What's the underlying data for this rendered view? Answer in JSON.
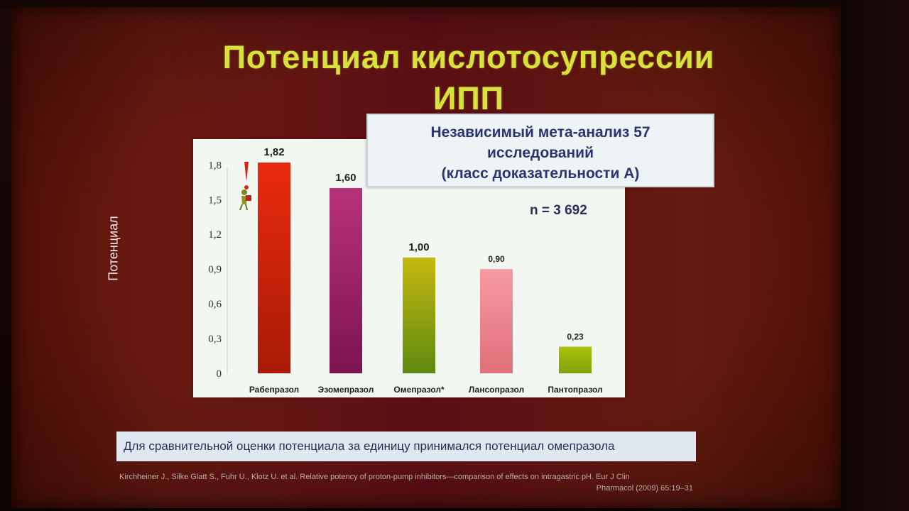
{
  "slide": {
    "title_line1": "Потенциал кислотосупрессии",
    "title_line2": "ИПП",
    "y_axis_title": "Потенциал",
    "info_box": {
      "line1": "Независимый мета-анализ 57",
      "line2": "исследований",
      "line3": "(класс доказательности А)"
    },
    "n_label": "n = 3 692",
    "note": "Для сравнительной оценки потенциала за единицу принимался потенциал омепразола",
    "reference_line1": "Kirchheiner J., Silke Glatt S., Fuhr U., Klotz U. et al. Relative potency of proton-pump inhibitors—comparison of effects on intragastric pH. Eur J Clin",
    "reference_line2": "Pharmacol (2009) 65:19–31"
  },
  "colors": {
    "title": "#d7e23c",
    "slide_bg": "#5f140e",
    "panel_bg": "#f2f7f1",
    "info_text": "#2b3470"
  },
  "chart_data": {
    "type": "bar",
    "categories": [
      "Рабепразол",
      "Эзомепразол",
      "Омепразол*",
      "Лансопразол",
      "Пантопразол"
    ],
    "values": [
      1.82,
      1.6,
      1.0,
      0.9,
      0.23
    ],
    "value_labels": [
      "1,82",
      "1,60",
      "1,00",
      "0,90",
      "0,23"
    ],
    "bar_colors": [
      [
        "#ea2a0e",
        "#a81a06"
      ],
      [
        "#b8327a",
        "#7c1350"
      ],
      [
        "#c6b810",
        "#5d8a10"
      ],
      [
        "#f59aa0",
        "#e0707a"
      ],
      [
        "#aac20e",
        "#7fa30a"
      ]
    ],
    "yticks": [
      0,
      0.3,
      0.6,
      0.9,
      1.2,
      1.5,
      1.8
    ],
    "ytick_labels": [
      "0",
      "0,3",
      "0,6",
      "0,9",
      "1,2",
      "1,5",
      "1,8"
    ],
    "ylim": [
      0,
      1.9
    ],
    "ylabel": "Потенциал",
    "icon": "exclamation-figure-icon"
  }
}
